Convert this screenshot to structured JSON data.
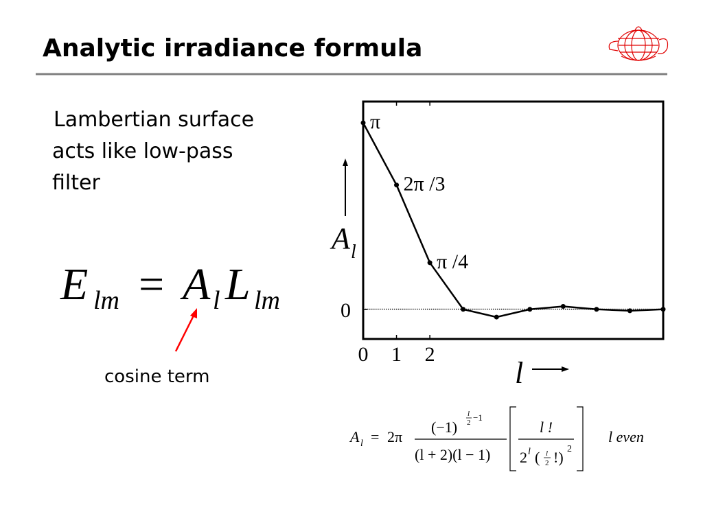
{
  "title": "Analytic irradiance formula",
  "bullet_lines": [
    "Lambertian surface",
    "acts like low-pass",
    "filter"
  ],
  "equation": {
    "E": "E",
    "E_sub": "lm",
    "equals": "=",
    "A": "A",
    "A_sub": "l",
    "L": "L",
    "L_sub": "lm"
  },
  "annotation": "cosine term",
  "chart_data": {
    "type": "line",
    "x": [
      0,
      1,
      2,
      3,
      4,
      5,
      6,
      7,
      8,
      9
    ],
    "values": [
      3.1416,
      2.0944,
      0.7854,
      0,
      -0.1309,
      0,
      0.0491,
      0,
      -0.0245,
      0
    ],
    "value_labels": [
      "π",
      "2π /3",
      "π /4",
      null,
      null,
      null,
      null,
      null,
      null,
      null
    ],
    "color": "#000000",
    "xlim": [
      0,
      9
    ],
    "xticks": [
      0,
      1,
      2
    ],
    "ylim": [
      -0.5,
      3.5
    ],
    "yticks": [
      0
    ],
    "grid": true,
    "ylabel": "A",
    "ylabel_sub": "l",
    "xlabel": "l"
  },
  "formula": {
    "A": "A",
    "A_sub": "l",
    "equals": "=",
    "coef": "2π",
    "num": "(−1)",
    "exp_num": "l",
    "exp_den": "2",
    "exp_tail": "−1",
    "den": "(l + 2)(l − 1)",
    "br_num": "l !",
    "br_base": "2",
    "br_pow": "l",
    "br_open": "(",
    "br_frac_num": "l",
    "br_frac_den": "2",
    "br_close": "!)",
    "br_sq": "2"
  },
  "condition": "l even"
}
